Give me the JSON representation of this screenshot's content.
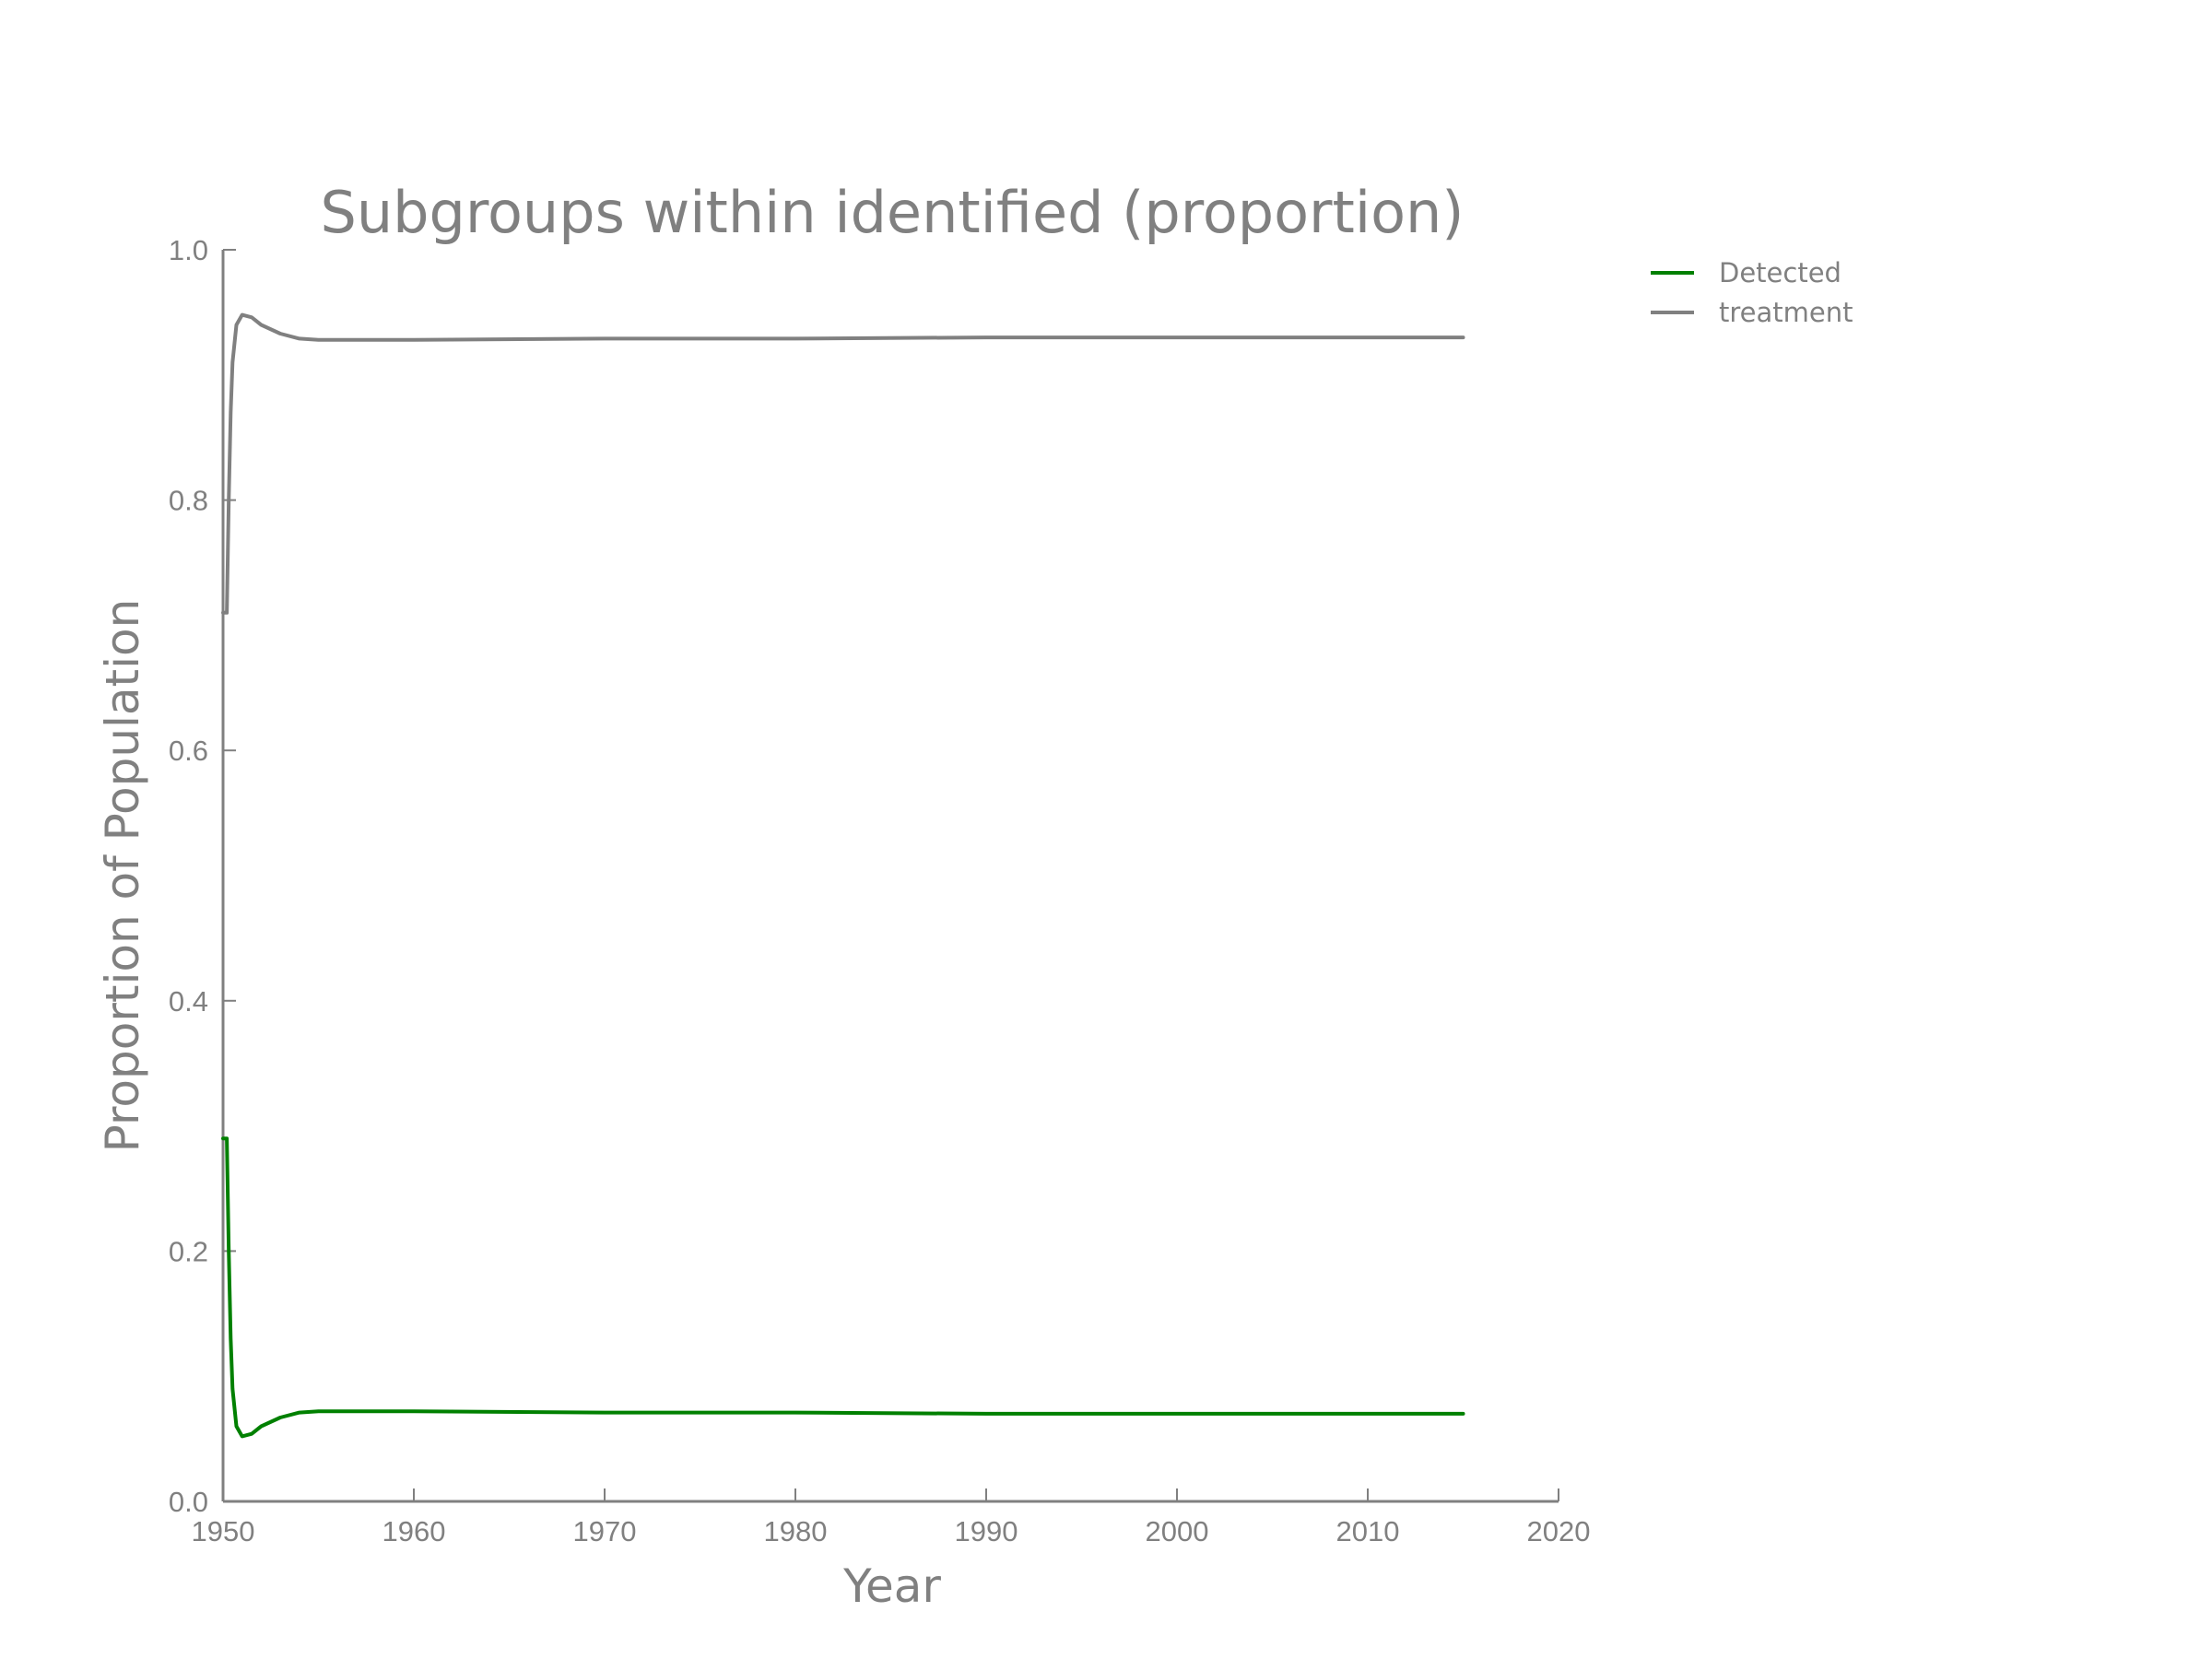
{
  "chart_data": {
    "type": "line",
    "title": "Subgroups within identified (proportion)",
    "xlabel": "Year",
    "ylabel": "Proportion of Population",
    "xlim": [
      1950,
      2020
    ],
    "ylim": [
      0.0,
      1.0
    ],
    "xticks": [
      "1950",
      "1960",
      "1970",
      "1980",
      "1990",
      "2000",
      "2010",
      "2020"
    ],
    "yticks": [
      "0.0",
      "0.2",
      "0.4",
      "0.6",
      "0.8",
      "1.0"
    ],
    "grid": false,
    "legend_position": "right-outside",
    "series": [
      {
        "name": "Detected",
        "color": "#008000",
        "x": [
          1950.0,
          1950.2,
          1950.3,
          1950.4,
          1950.5,
          1950.7,
          1951.0,
          1951.5,
          1952,
          1953,
          1954,
          1955,
          1956,
          1960,
          1970,
          1980,
          1990,
          2000,
          2010,
          2015
        ],
        "y": [
          0.29,
          0.29,
          0.2,
          0.13,
          0.09,
          0.06,
          0.052,
          0.054,
          0.06,
          0.067,
          0.071,
          0.072,
          0.072,
          0.072,
          0.071,
          0.071,
          0.07,
          0.07,
          0.07,
          0.07
        ]
      },
      {
        "name": "treatment",
        "color": "#808080",
        "x": [
          1950.0,
          1950.2,
          1950.3,
          1950.4,
          1950.5,
          1950.7,
          1951.0,
          1951.5,
          1952,
          1953,
          1954,
          1955,
          1956,
          1960,
          1970,
          1980,
          1990,
          2000,
          2010,
          2015
        ],
        "y": [
          0.71,
          0.71,
          0.8,
          0.87,
          0.91,
          0.94,
          0.948,
          0.946,
          0.94,
          0.933,
          0.929,
          0.928,
          0.928,
          0.928,
          0.929,
          0.929,
          0.93,
          0.93,
          0.93,
          0.93
        ]
      }
    ]
  }
}
